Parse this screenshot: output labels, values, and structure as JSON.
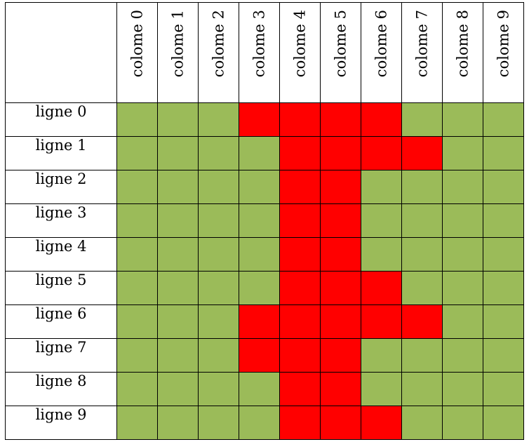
{
  "colors": {
    "green": "#9bbb59",
    "red": "#ff0000"
  },
  "chart_data": {
    "type": "heatmap",
    "title": "",
    "columns": [
      "colome 0",
      "colome 1",
      "colome 2",
      "colome 3",
      "colome 4",
      "colome 5",
      "colome 6",
      "colome 7",
      "colome 8",
      "colome 9"
    ],
    "rows": [
      "ligne 0",
      "ligne 1",
      "ligne 2",
      "ligne 3",
      "ligne 4",
      "ligne 5",
      "ligne 6",
      "ligne 7",
      "ligne 8",
      "ligne 9"
    ],
    "values": [
      [
        0,
        0,
        0,
        1,
        1,
        1,
        1,
        0,
        0,
        0
      ],
      [
        0,
        0,
        0,
        0,
        1,
        1,
        1,
        1,
        0,
        0
      ],
      [
        0,
        0,
        0,
        0,
        1,
        1,
        0,
        0,
        0,
        0
      ],
      [
        0,
        0,
        0,
        0,
        1,
        1,
        0,
        0,
        0,
        0
      ],
      [
        0,
        0,
        0,
        0,
        1,
        1,
        0,
        0,
        0,
        0
      ],
      [
        0,
        0,
        0,
        0,
        1,
        1,
        1,
        0,
        0,
        0
      ],
      [
        0,
        0,
        0,
        1,
        1,
        1,
        1,
        1,
        0,
        0
      ],
      [
        0,
        0,
        0,
        1,
        1,
        1,
        0,
        0,
        0,
        0
      ],
      [
        0,
        0,
        0,
        0,
        1,
        1,
        0,
        0,
        0,
        0
      ],
      [
        0,
        0,
        0,
        0,
        1,
        1,
        1,
        0,
        0,
        0
      ]
    ],
    "value_colors": {
      "0": "green",
      "1": "red"
    }
  }
}
